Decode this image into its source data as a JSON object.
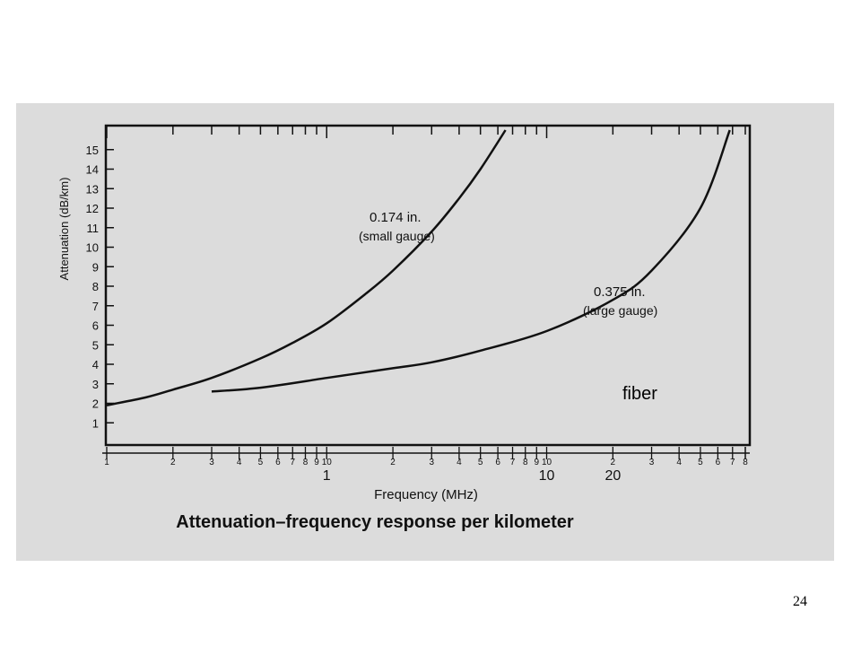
{
  "page_number": "24",
  "overlay_label": "fiber",
  "colors": {
    "scan_background": "#dcdcdc",
    "ink": "#111111",
    "page": "#ffffff"
  },
  "chart_data": {
    "type": "line",
    "title": "Attenuation–frequency response per kilometer",
    "xlabel": "Frequency (MHz)",
    "ylabel": "Attenuation (dB/km)",
    "x_scale": "log",
    "xlim": [
      0.1,
      80
    ],
    "ylim": [
      0,
      16
    ],
    "x_tick_minor_labels": [
      "1",
      "2",
      "3",
      "4",
      "5",
      "6",
      "7",
      "8",
      "9",
      "10",
      "2",
      "3",
      "4",
      "5",
      "6",
      "7",
      "8",
      "9",
      "10",
      "2",
      "3",
      "4",
      "5",
      "6",
      "7",
      "8"
    ],
    "x_tick_major_labels": [
      "1",
      "10",
      "20"
    ],
    "y_ticks": [
      1,
      2,
      3,
      4,
      5,
      6,
      7,
      8,
      9,
      10,
      11,
      12,
      13,
      14,
      15
    ],
    "grid": false,
    "series": [
      {
        "name": "0.174 in. (small gauge)",
        "label_line1": "0.174 in.",
        "label_line2": "(small gauge)",
        "x": [
          0.1,
          0.15,
          0.2,
          0.3,
          0.5,
          0.7,
          1,
          1.5,
          2,
          3,
          4,
          5,
          6.5
        ],
        "y": [
          1.9,
          2.3,
          2.7,
          3.3,
          4.3,
          5.1,
          6.1,
          7.6,
          8.8,
          10.8,
          12.5,
          14.0,
          16.0
        ]
      },
      {
        "name": "0.375 in. (large gauge)",
        "label_line1": "0.375 in.",
        "label_line2": "(large gauge)",
        "x": [
          0.3,
          0.5,
          1,
          2,
          3,
          5,
          10,
          20,
          30,
          50,
          68
        ],
        "y": [
          2.6,
          2.8,
          3.3,
          3.8,
          4.1,
          4.7,
          5.7,
          7.3,
          8.8,
          12.0,
          16.0
        ]
      }
    ]
  }
}
